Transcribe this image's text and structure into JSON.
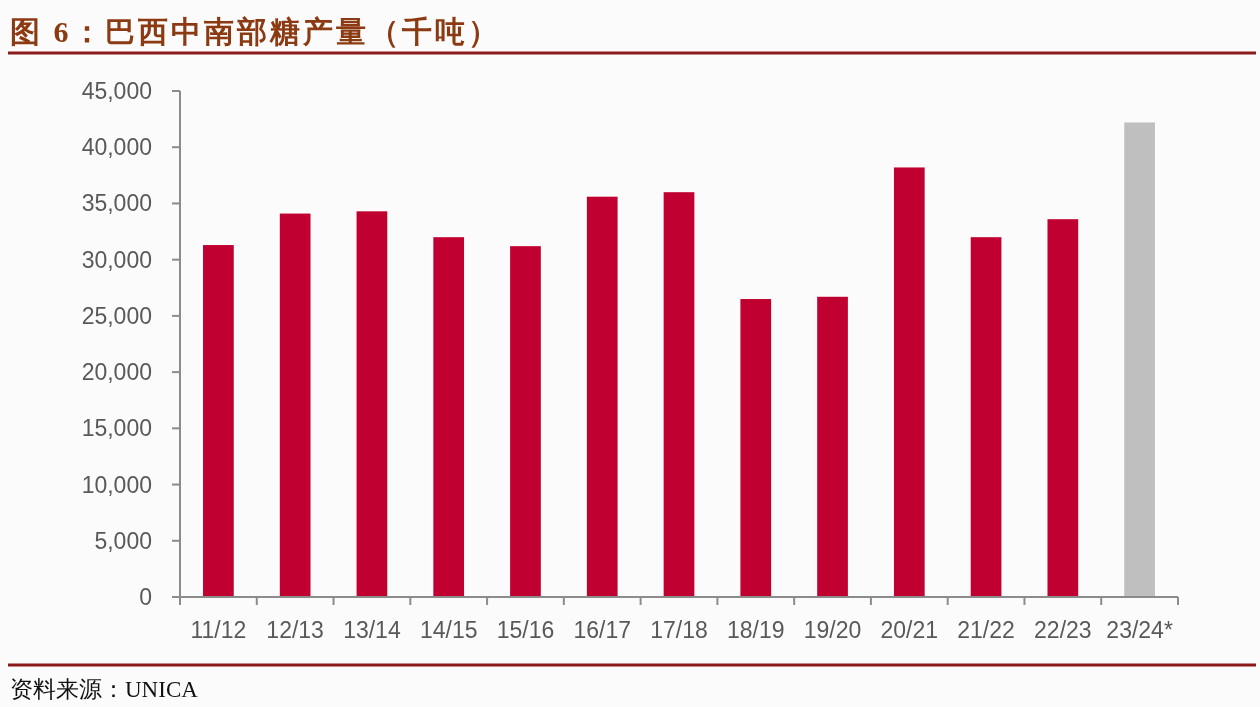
{
  "chart_data": {
    "type": "bar",
    "title": "图 6：巴西中南部糖产量（千吨）",
    "categories": [
      "11/12",
      "12/13",
      "13/14",
      "14/15",
      "15/16",
      "16/17",
      "17/18",
      "18/19",
      "19/20",
      "20/21",
      "21/22",
      "22/23",
      "23/24*"
    ],
    "values": [
      31300,
      34100,
      34300,
      32000,
      31200,
      35600,
      36000,
      26500,
      26700,
      38200,
      32000,
      33600,
      42200
    ],
    "colors": [
      "#c00030",
      "#c00030",
      "#c00030",
      "#c00030",
      "#c00030",
      "#c00030",
      "#c00030",
      "#c00030",
      "#c00030",
      "#c00030",
      "#c00030",
      "#c00030",
      "#bfbfbf"
    ],
    "ylim": [
      0,
      45000
    ],
    "yticks": [
      0,
      {
        "value": 5000,
        "label": "5,000"
      },
      {
        "value": 10000,
        "label": "10,000"
      },
      {
        "value": 15000,
        "label": "15,000"
      },
      {
        "value": 20000,
        "label": "20,000"
      },
      {
        "value": 25000,
        "label": "25,000"
      },
      {
        "value": 30000,
        "label": "30,000"
      },
      {
        "value": 35000,
        "label": "35,000"
      },
      {
        "value": 40000,
        "label": "40,000"
      },
      {
        "value": 45000,
        "label": "45,000"
      }
    ],
    "annotations": [
      "资料来源：UNICA"
    ]
  }
}
